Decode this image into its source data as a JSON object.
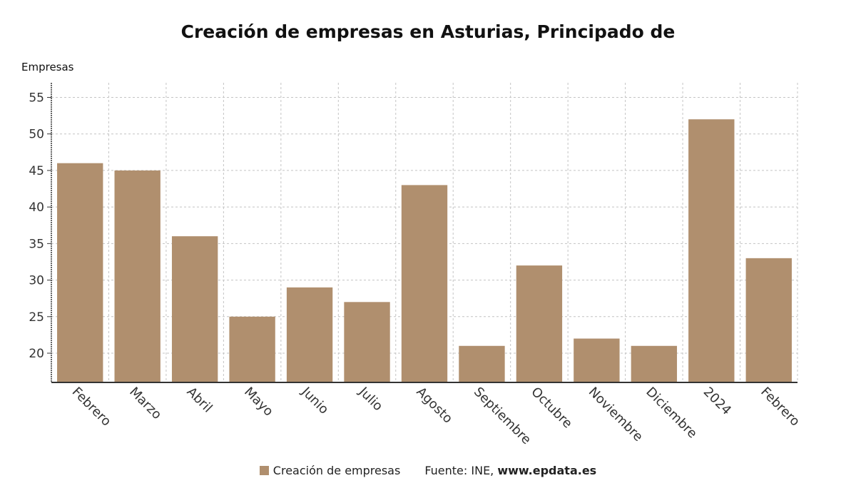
{
  "chart_data": {
    "type": "bar",
    "title": "Creación de empresas en Asturias, Principado de",
    "ylabel": "Empresas",
    "xlabel": "",
    "categories": [
      "Febrero",
      "Marzo",
      "Abril",
      "Mayo",
      "Junio",
      "Julio",
      "Agosto",
      "Septiembre",
      "Octubre",
      "Noviembre",
      "Diciembre",
      "2024",
      "Febrero"
    ],
    "series": [
      {
        "name": "Creación de empresas",
        "values": [
          46,
          45,
          36,
          25,
          29,
          27,
          43,
          21,
          32,
          22,
          21,
          52,
          33
        ],
        "color": "#b08f6e"
      }
    ],
    "ylim": [
      16,
      57
    ],
    "yticks": [
      20,
      25,
      30,
      35,
      40,
      45,
      50,
      55
    ],
    "grid": true,
    "legend_position": "bottom"
  },
  "footer": {
    "legend_label": "Creación de empresas",
    "source_prefix": "Fuente: INE, ",
    "source_site": "www.epdata.es"
  }
}
